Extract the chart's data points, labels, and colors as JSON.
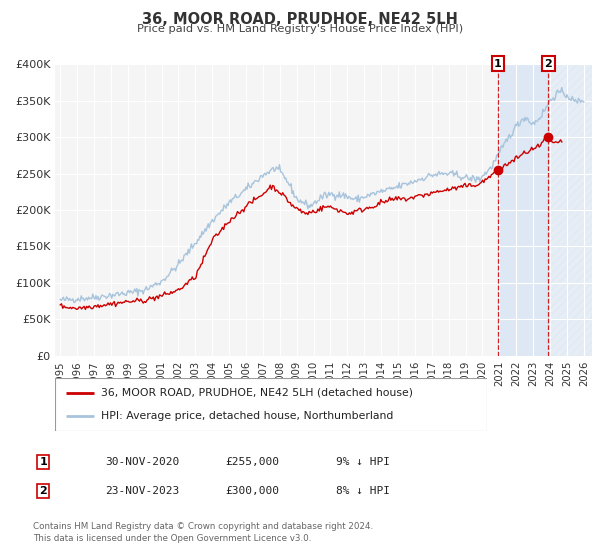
{
  "title": "36, MOOR ROAD, PRUDHOE, NE42 5LH",
  "subtitle": "Price paid vs. HM Land Registry's House Price Index (HPI)",
  "ylim": [
    0,
    400000
  ],
  "xlim_start": 1994.7,
  "xlim_end": 2026.5,
  "yticks": [
    0,
    50000,
    100000,
    150000,
    200000,
    250000,
    300000,
    350000,
    400000
  ],
  "ytick_labels": [
    "£0",
    "£50K",
    "£100K",
    "£150K",
    "£200K",
    "£250K",
    "£300K",
    "£350K",
    "£400K"
  ],
  "xticks": [
    1995,
    1996,
    1997,
    1998,
    1999,
    2000,
    2001,
    2002,
    2003,
    2004,
    2005,
    2006,
    2007,
    2008,
    2009,
    2010,
    2011,
    2012,
    2013,
    2014,
    2015,
    2016,
    2017,
    2018,
    2019,
    2020,
    2021,
    2022,
    2023,
    2024,
    2025,
    2026
  ],
  "hpi_color": "#a8c4dc",
  "sale_color": "#cc0000",
  "marker1_date": 2020.917,
  "marker1_value": 255000,
  "marker2_date": 2023.9,
  "marker2_value": 300000,
  "vline1_x": 2020.917,
  "vline2_x": 2023.9,
  "shade1_start": 2020.917,
  "shade1_end": 2023.9,
  "shade2_start": 2023.9,
  "shade2_end": 2026.5,
  "legend_label1": "36, MOOR ROAD, PRUDHOE, NE42 5LH (detached house)",
  "legend_label2": "HPI: Average price, detached house, Northumberland",
  "table_row1": [
    "1",
    "30-NOV-2020",
    "£255,000",
    "9% ↓ HPI"
  ],
  "table_row2": [
    "2",
    "23-NOV-2023",
    "£300,000",
    "8% ↓ HPI"
  ],
  "footer": "Contains HM Land Registry data © Crown copyright and database right 2024.\nThis data is licensed under the Open Government Licence v3.0.",
  "background_color": "#ffffff",
  "plot_bg_color": "#f5f5f5",
  "shade_color": "#dde8f4",
  "hatch_color": "#c8d8ea"
}
